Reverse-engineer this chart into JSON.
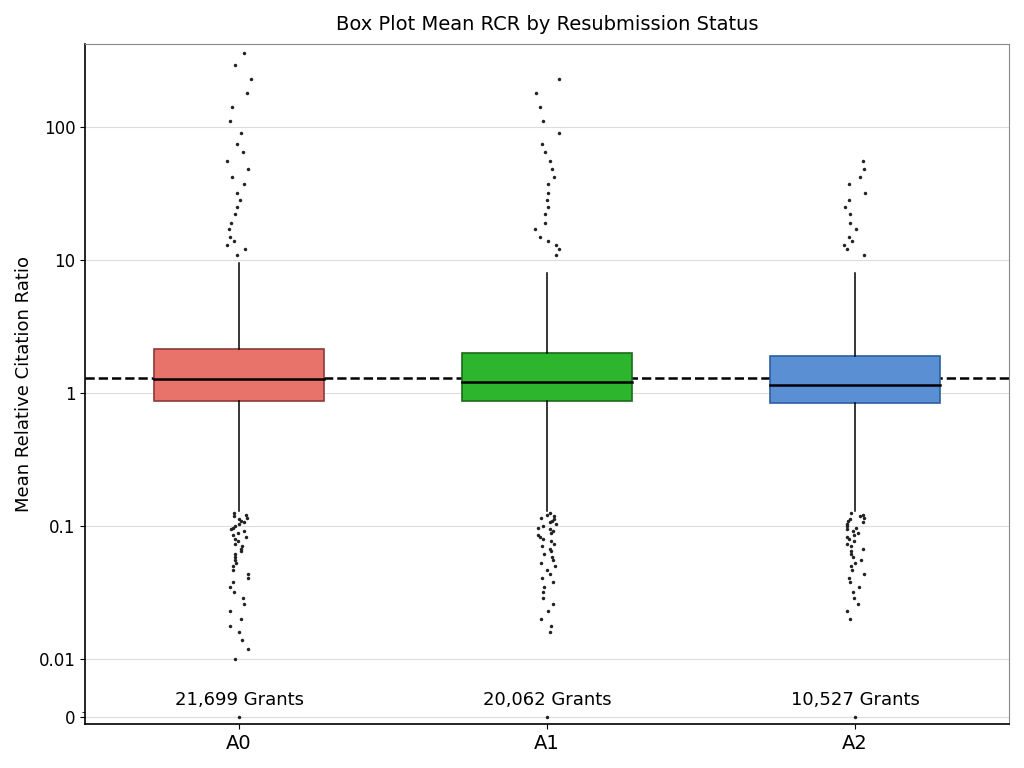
{
  "title": "Box Plot Mean RCR by Resubmission Status",
  "ylabel": "Mean Relative Citation Ratio",
  "categories": [
    "A0",
    "A1",
    "A2"
  ],
  "colors": [
    "#E8736B",
    "#2DB52D",
    "#5B8FD4"
  ],
  "edge_colors": [
    "#8B3A3A",
    "#1A6B1A",
    "#2E5FA0"
  ],
  "grant_labels": [
    "21,699 Grants",
    "20,062 Grants",
    "10,527 Grants"
  ],
  "boxes": [
    {
      "q1": 0.87,
      "median": 1.28,
      "q3": 2.15,
      "whislo": 0.13,
      "whishi": 9.5
    },
    {
      "q1": 0.87,
      "median": 1.22,
      "q3": 2.0,
      "whislo": 0.13,
      "whishi": 8.0
    },
    {
      "q1": 0.84,
      "median": 1.15,
      "q3": 1.9,
      "whislo": 0.13,
      "whishi": 8.0
    }
  ],
  "lower_outlier_clusters": [
    [
      0.125,
      0.122,
      0.119,
      0.116,
      0.113,
      0.11,
      0.107,
      0.104,
      0.101,
      0.098,
      0.095,
      0.092,
      0.089,
      0.086,
      0.083,
      0.08,
      0.077,
      0.074,
      0.071,
      0.068,
      0.065,
      0.062,
      0.059,
      0.056,
      0.053,
      0.05,
      0.047,
      0.044,
      0.041,
      0.038,
      0.035,
      0.032,
      0.029,
      0.026,
      0.023,
      0.02,
      0.018,
      0.016,
      0.014,
      0.012,
      0.01
    ],
    [
      0.125,
      0.122,
      0.119,
      0.116,
      0.113,
      0.11,
      0.107,
      0.104,
      0.101,
      0.098,
      0.095,
      0.092,
      0.089,
      0.086,
      0.083,
      0.08,
      0.077,
      0.074,
      0.071,
      0.068,
      0.065,
      0.062,
      0.059,
      0.056,
      0.053,
      0.05,
      0.047,
      0.044,
      0.041,
      0.038,
      0.035,
      0.032,
      0.029,
      0.026,
      0.023,
      0.02,
      0.018,
      0.016
    ],
    [
      0.125,
      0.122,
      0.119,
      0.116,
      0.113,
      0.11,
      0.107,
      0.104,
      0.101,
      0.098,
      0.095,
      0.092,
      0.089,
      0.086,
      0.083,
      0.08,
      0.077,
      0.074,
      0.071,
      0.068,
      0.065,
      0.062,
      0.059,
      0.056,
      0.053,
      0.05,
      0.047,
      0.044,
      0.041,
      0.038,
      0.035,
      0.032,
      0.029,
      0.026,
      0.023,
      0.02
    ]
  ],
  "upper_outlier_clusters": [
    [
      11,
      12,
      13,
      14,
      15,
      17,
      19,
      22,
      25,
      28,
      32,
      37,
      42,
      48,
      55,
      65,
      75,
      90,
      110,
      140,
      180,
      230,
      290,
      360
    ],
    [
      11,
      12,
      13,
      14,
      15,
      17,
      19,
      22,
      25,
      28,
      32,
      37,
      42,
      48,
      55,
      65,
      75,
      90,
      110,
      140,
      180,
      230
    ],
    [
      11,
      12,
      13,
      14,
      15,
      17,
      19,
      22,
      25,
      28,
      32,
      37,
      42,
      48,
      55
    ]
  ],
  "min_vals": [
    0.0,
    0.0,
    0.0
  ],
  "dashed_line_y": 1.3,
  "background_color": "#FFFFFF",
  "grid_color": "#DDDDDD",
  "box_width": 0.55,
  "flier_size": 2.5,
  "title_fontsize": 14,
  "label_fontsize": 13,
  "tick_fontsize": 12,
  "annotation_fontsize": 13
}
